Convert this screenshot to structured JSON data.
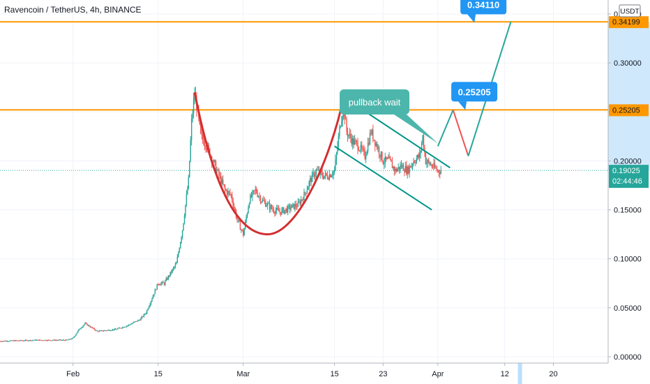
{
  "header": {
    "title": "Ravencoin / TetherUS, 4h, BINANCE",
    "currency_button": "USDT"
  },
  "colors": {
    "background": "#ffffff",
    "grid": "#f0f3fa",
    "axis": "#b2b5be",
    "candle_up": "#26a69a",
    "candle_down": "#ef5350",
    "resistance": "#ff9800",
    "price_line": "#26a69a",
    "cup_curve": "#d32f2f",
    "channel": "#009688",
    "callout": "#2196f3",
    "note": "#4db6ac",
    "projection_up": "#26a69a",
    "projection_down": "#ef5350",
    "range_highlight": "#bbdefb"
  },
  "chart_data": {
    "type": "candlestick",
    "title": "Ravencoin / TetherUS, 4h, BINANCE",
    "y_axis": {
      "ticks": [
        "0.00000",
        "0.05000",
        "0.10000",
        "0.15000",
        "0.20000",
        "0.25000",
        "0.30000",
        "0.35000"
      ],
      "range": [
        0.0,
        0.35
      ],
      "side": "right"
    },
    "x_axis": {
      "ticks": [
        "Feb",
        "15",
        "Mar",
        "15",
        "23",
        "Apr",
        "12",
        "20"
      ],
      "tick_days": [
        31,
        45,
        59,
        74,
        82,
        91,
        102,
        110
      ],
      "range_days": [
        19,
        119
      ]
    },
    "price_path": [
      [
        19,
        0.016
      ],
      [
        25,
        0.017
      ],
      [
        30,
        0.017
      ],
      [
        31,
        0.019
      ],
      [
        32,
        0.028
      ],
      [
        33,
        0.034
      ],
      [
        35,
        0.026
      ],
      [
        38,
        0.028
      ],
      [
        40,
        0.032
      ],
      [
        42,
        0.038
      ],
      [
        43,
        0.045
      ],
      [
        44,
        0.06
      ],
      [
        45,
        0.075
      ],
      [
        46,
        0.075
      ],
      [
        47,
        0.085
      ],
      [
        48,
        0.095
      ],
      [
        49,
        0.13
      ],
      [
        50,
        0.18
      ],
      [
        50.5,
        0.24
      ],
      [
        51,
        0.27
      ],
      [
        51.5,
        0.25
      ],
      [
        52,
        0.225
      ],
      [
        53,
        0.215
      ],
      [
        54,
        0.2
      ],
      [
        55,
        0.185
      ],
      [
        56,
        0.17
      ],
      [
        57,
        0.165
      ],
      [
        58,
        0.14
      ],
      [
        59,
        0.125
      ],
      [
        60,
        0.16
      ],
      [
        61,
        0.17
      ],
      [
        62,
        0.16
      ],
      [
        63,
        0.155
      ],
      [
        64,
        0.15
      ],
      [
        65,
        0.148
      ],
      [
        66,
        0.15
      ],
      [
        67,
        0.153
      ],
      [
        68,
        0.155
      ],
      [
        69,
        0.165
      ],
      [
        70,
        0.18
      ],
      [
        71,
        0.19
      ],
      [
        72,
        0.185
      ],
      [
        73,
        0.185
      ],
      [
        74,
        0.19
      ],
      [
        75,
        0.24
      ],
      [
        75.5,
        0.255
      ],
      [
        76,
        0.23
      ],
      [
        77,
        0.22
      ],
      [
        78,
        0.215
      ],
      [
        79,
        0.205
      ],
      [
        80,
        0.23
      ],
      [
        81,
        0.215
      ],
      [
        82,
        0.2
      ],
      [
        83,
        0.2
      ],
      [
        84,
        0.19
      ],
      [
        85,
        0.195
      ],
      [
        86,
        0.19
      ],
      [
        87,
        0.2
      ],
      [
        88,
        0.205
      ],
      [
        88.5,
        0.225
      ],
      [
        89,
        0.2
      ],
      [
        90,
        0.195
      ],
      [
        91,
        0.19
      ],
      [
        91.5,
        0.19025
      ]
    ],
    "horizontal_levels": [
      {
        "label": "0.34199",
        "value": 0.34199,
        "color": "#ff9800"
      },
      {
        "label": "0.25205",
        "value": 0.25205,
        "color": "#ff9800"
      },
      {
        "label": "0.19025",
        "value": 0.19025,
        "color": "#26a69a",
        "dotted": true
      }
    ],
    "current_price": {
      "label": "0.19025",
      "countdown": "02:44:46"
    },
    "callouts": [
      {
        "text": "0.34110",
        "day": 97,
        "value": 0.3411
      },
      {
        "text": "0.25205",
        "day": 95.5,
        "value": 0.25205
      }
    ],
    "note": {
      "text": "pullback wait"
    },
    "cup": {
      "from": [
        51,
        0.27
      ],
      "bottom": [
        63,
        0.125
      ],
      "to": [
        75.5,
        0.265
      ]
    },
    "channel": {
      "upper": [
        [
          75.5,
          0.265
        ],
        [
          93,
          0.193
        ]
      ],
      "lower": [
        [
          74,
          0.215
        ],
        [
          90,
          0.15
        ]
      ]
    },
    "projection": [
      [
        91,
        0.215
      ],
      [
        93.5,
        0.252
      ],
      [
        96,
        0.205
      ],
      [
        103,
        0.34199
      ]
    ],
    "x_highlight_day": 104.5
  }
}
